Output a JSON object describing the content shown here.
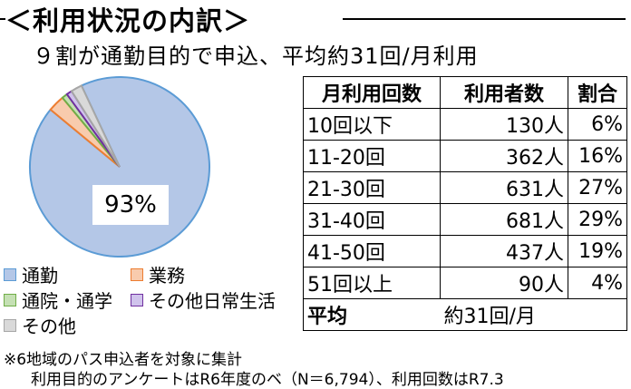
{
  "header": {
    "title": "＜利用状況の内訳＞",
    "subtitle": "９割が通勤目的で申込、平均約31回/月利用"
  },
  "chart_data": {
    "type": "pie",
    "slices": [
      {
        "label": "通勤",
        "value": 93,
        "color": "#b4c7e7",
        "stroke": "#5b9bd5"
      },
      {
        "label": "業務",
        "value": 3,
        "color": "#f8cbad",
        "stroke": "#ed7d31"
      },
      {
        "label": "通院・通学",
        "value": 1,
        "color": "#c5e0b4",
        "stroke": "#70ad47"
      },
      {
        "label": "その他日常生活",
        "value": 1,
        "color": "#d0c3ec",
        "stroke": "#7030a0"
      },
      {
        "label": "その他",
        "value": 2,
        "color": "#d9d9d9",
        "stroke": "#a6a6a6"
      }
    ],
    "data_label": "93%"
  },
  "legend": {
    "items": [
      {
        "label": "通勤",
        "color": "#b4c7e7",
        "stroke": "#5b9bd5"
      },
      {
        "label": "業務",
        "color": "#f8cbad",
        "stroke": "#ed7d31"
      },
      {
        "label": "通院・通学",
        "color": "#c5e0b4",
        "stroke": "#70ad47"
      },
      {
        "label": "その他日常生活",
        "color": "#d0c3ec",
        "stroke": "#7030a0"
      },
      {
        "label": "その他",
        "color": "#d9d9d9",
        "stroke": "#a6a6a6"
      }
    ]
  },
  "table": {
    "headers": [
      "月利用回数",
      "利用者数",
      "割合"
    ],
    "rows": [
      [
        "10回以下",
        "130人",
        "6%"
      ],
      [
        "11-20回",
        "362人",
        "16%"
      ],
      [
        "21-30回",
        "631人",
        "27%"
      ],
      [
        "31-40回",
        "681人",
        "29%"
      ],
      [
        "41-50回",
        "437人",
        "19%"
      ],
      [
        "51回以上",
        "90人",
        "4%"
      ]
    ],
    "average_label": "平均",
    "average_value": "約31回/月"
  },
  "notes": {
    "line1": "※6地域のパス申込者を対象に集計",
    "line2": "利用目的のアンケートはR6年度のベ（N＝6,794）、利用回数はR7.3"
  }
}
